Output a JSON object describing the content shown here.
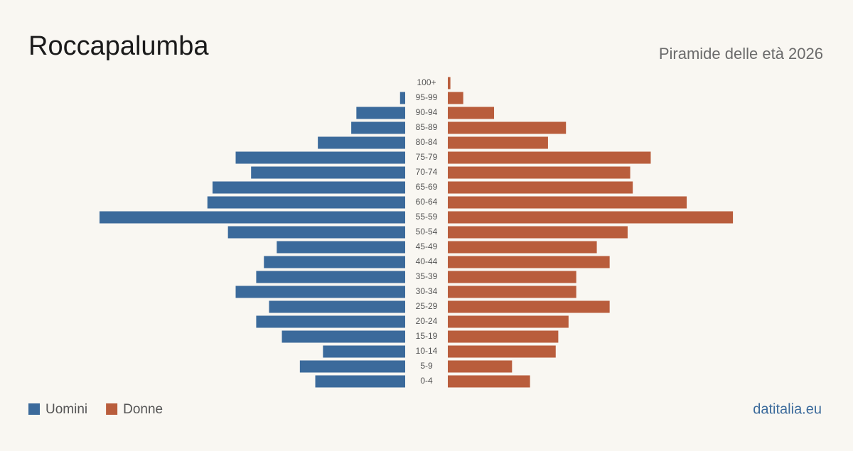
{
  "chart_data": {
    "type": "population-pyramid",
    "title": "Roccapalumba",
    "subtitle": "Piramide delle età 2026",
    "source": "datitalia.eu",
    "categories": [
      "100+",
      "95-99",
      "90-94",
      "85-89",
      "80-84",
      "75-79",
      "70-74",
      "65-69",
      "60-64",
      "55-59",
      "50-54",
      "45-49",
      "40-44",
      "35-39",
      "30-34",
      "25-29",
      "20-24",
      "15-19",
      "10-14",
      "5-9",
      "0-4"
    ],
    "series": [
      {
        "name": "Uomini",
        "color": "#3b6a9b",
        "values": [
          0,
          2,
          19,
          21,
          34,
          66,
          60,
          75,
          77,
          119,
          69,
          50,
          55,
          58,
          66,
          53,
          58,
          48,
          32,
          41,
          35
        ]
      },
      {
        "name": "Donne",
        "color": "#b95d3c",
        "values": [
          1,
          6,
          18,
          46,
          39,
          79,
          71,
          72,
          93,
          111,
          70,
          58,
          63,
          50,
          50,
          63,
          47,
          43,
          42,
          25,
          32
        ]
      }
    ]
  }
}
